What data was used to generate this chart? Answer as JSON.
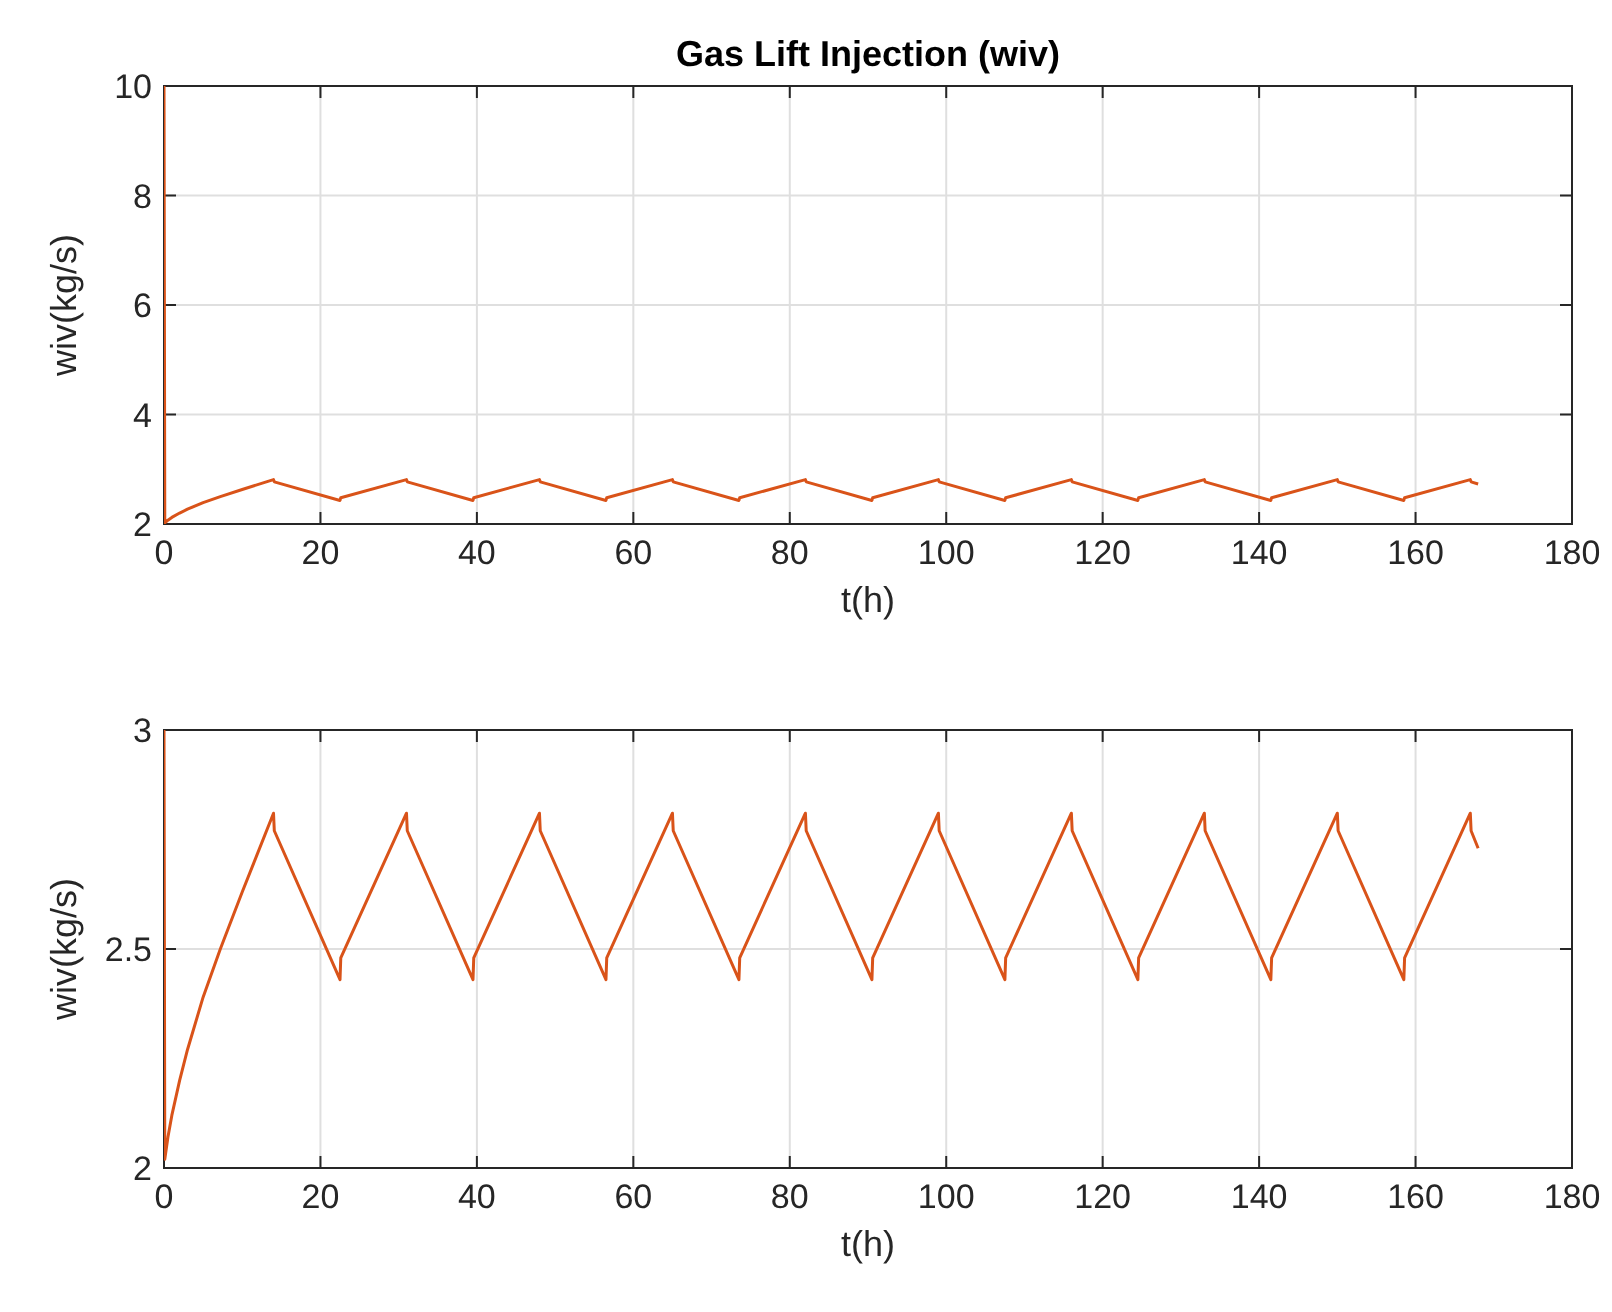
{
  "chart_data": [
    {
      "type": "line",
      "title": "Gas Lift Injection (wiv)",
      "xlabel": "t(h)",
      "ylabel": "wiv(kg/s)",
      "xlim": [
        0,
        180
      ],
      "xticks": [
        0,
        20,
        40,
        60,
        80,
        100,
        120,
        140,
        160,
        180
      ],
      "ylim": [
        2,
        10
      ],
      "yticks": [
        2,
        4,
        6,
        8,
        10
      ],
      "grid": true,
      "series": [
        {
          "color": "#d95319",
          "x": [
            0,
            0.1,
            0.5,
            1,
            2,
            3,
            5,
            7.2,
            10,
            14,
            14.1,
            22.5,
            22.6,
            31,
            31.1,
            39.5,
            39.6,
            48,
            48.1,
            56.5,
            56.6,
            65,
            65.1,
            73.5,
            73.6,
            82,
            82.1,
            90.5,
            90.6,
            99,
            99.1,
            107.5,
            107.6,
            116,
            116.1,
            124.5,
            124.6,
            133,
            133.1,
            141.5,
            141.6,
            150,
            150.1,
            158.5,
            158.6,
            167,
            167.1,
            168
          ],
          "values": [
            10,
            2.02,
            2.07,
            2.12,
            2.2,
            2.27,
            2.39,
            2.5,
            2.63,
            2.81,
            2.77,
            2.43,
            2.48,
            2.81,
            2.77,
            2.43,
            2.48,
            2.81,
            2.77,
            2.43,
            2.48,
            2.81,
            2.77,
            2.43,
            2.48,
            2.81,
            2.77,
            2.43,
            2.48,
            2.81,
            2.77,
            2.43,
            2.48,
            2.81,
            2.77,
            2.43,
            2.48,
            2.81,
            2.77,
            2.43,
            2.48,
            2.81,
            2.77,
            2.43,
            2.48,
            2.81,
            2.77,
            2.73
          ]
        }
      ]
    },
    {
      "type": "line",
      "xlabel": "t(h)",
      "ylabel": "wiv(kg/s)",
      "xlim": [
        0,
        180
      ],
      "xticks": [
        0,
        20,
        40,
        60,
        80,
        100,
        120,
        140,
        160,
        180
      ],
      "ylim": [
        2,
        3
      ],
      "yticks": [
        2,
        2.5,
        3
      ],
      "grid": true,
      "series": [
        {
          "color": "#d95319",
          "x": [
            0,
            0.1,
            0.5,
            1,
            2,
            3,
            5,
            7.2,
            10,
            14,
            14.1,
            22.5,
            22.6,
            31,
            31.1,
            39.5,
            39.6,
            48,
            48.1,
            56.5,
            56.6,
            65,
            65.1,
            73.5,
            73.6,
            82,
            82.1,
            90.5,
            90.6,
            99,
            99.1,
            107.5,
            107.6,
            116,
            116.1,
            124.5,
            124.6,
            133,
            133.1,
            141.5,
            141.6,
            150,
            150.1,
            158.5,
            158.6,
            167,
            167.1,
            168
          ],
          "values": [
            3,
            2.02,
            2.07,
            2.12,
            2.2,
            2.27,
            2.39,
            2.5,
            2.63,
            2.81,
            2.77,
            2.43,
            2.48,
            2.81,
            2.77,
            2.43,
            2.48,
            2.81,
            2.77,
            2.43,
            2.48,
            2.81,
            2.77,
            2.43,
            2.48,
            2.81,
            2.77,
            2.43,
            2.48,
            2.81,
            2.77,
            2.43,
            2.48,
            2.81,
            2.77,
            2.43,
            2.48,
            2.81,
            2.77,
            2.43,
            2.48,
            2.81,
            2.77,
            2.43,
            2.48,
            2.81,
            2.77,
            2.73
          ]
        }
      ]
    }
  ]
}
